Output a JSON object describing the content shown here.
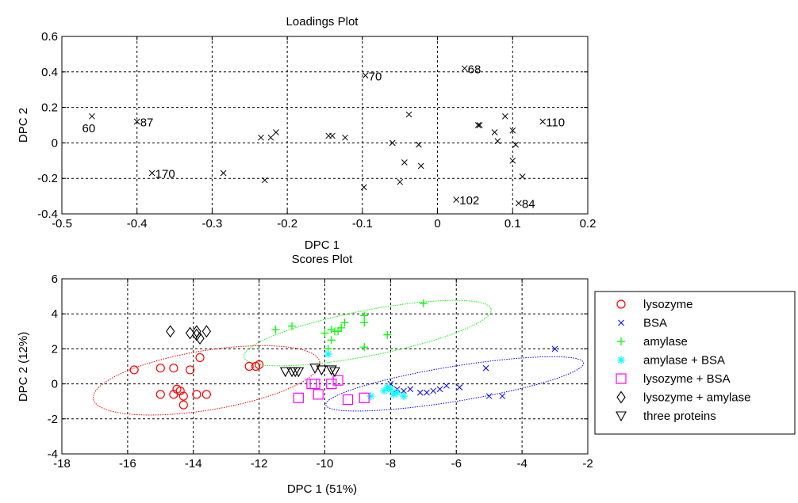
{
  "chart_data": [
    {
      "type": "scatter",
      "title": "Loadings Plot",
      "xlabel": "DPC 1",
      "ylabel": "DPC 2",
      "xlim": [
        -0.5,
        0.2
      ],
      "ylim": [
        -0.4,
        0.6
      ],
      "xticks": [
        "-0.5",
        "-0.4",
        "-0.3",
        "-0.2",
        "-0.1",
        "0",
        "0.1",
        "0.2"
      ],
      "yticks": [
        "-0.4",
        "-0.2",
        "0",
        "0.2",
        "0.4",
        "0.6"
      ],
      "grid": true,
      "marker_color": "#000000",
      "points": [
        {
          "x": -0.46,
          "y": 0.15,
          "label": "60"
        },
        {
          "x": -0.4,
          "y": 0.12,
          "label": "87"
        },
        {
          "x": -0.38,
          "y": -0.17,
          "label": "170"
        },
        {
          "x": -0.285,
          "y": -0.17
        },
        {
          "x": -0.235,
          "y": 0.03
        },
        {
          "x": -0.23,
          "y": -0.21
        },
        {
          "x": -0.222,
          "y": 0.03
        },
        {
          "x": -0.215,
          "y": 0.06
        },
        {
          "x": -0.145,
          "y": 0.04
        },
        {
          "x": -0.14,
          "y": 0.04
        },
        {
          "x": -0.123,
          "y": 0.03
        },
        {
          "x": -0.098,
          "y": -0.25
        },
        {
          "x": -0.096,
          "y": 0.38,
          "label": "70"
        },
        {
          "x": -0.06,
          "y": 0.0
        },
        {
          "x": -0.05,
          "y": -0.22
        },
        {
          "x": -0.044,
          "y": -0.11
        },
        {
          "x": -0.038,
          "y": 0.16
        },
        {
          "x": -0.025,
          "y": -0.01
        },
        {
          "x": -0.022,
          "y": -0.13
        },
        {
          "x": 0.036,
          "y": 0.42,
          "label": "68"
        },
        {
          "x": 0.025,
          "y": -0.32,
          "label": "102"
        },
        {
          "x": 0.054,
          "y": 0.1
        },
        {
          "x": 0.056,
          "y": 0.1
        },
        {
          "x": 0.076,
          "y": 0.06
        },
        {
          "x": 0.08,
          "y": 0.01
        },
        {
          "x": 0.09,
          "y": 0.15
        },
        {
          "x": 0.1,
          "y": 0.07
        },
        {
          "x": 0.1,
          "y": -0.1
        },
        {
          "x": 0.104,
          "y": -0.01
        },
        {
          "x": 0.113,
          "y": -0.19
        },
        {
          "x": 0.108,
          "y": -0.34,
          "label": "84"
        },
        {
          "x": 0.14,
          "y": 0.12,
          "label": "110"
        }
      ]
    },
    {
      "type": "scatter",
      "title": "Scores Plot",
      "xlabel": "DPC 1 (51%)",
      "ylabel": "DPC 2 (12%)",
      "xlim": [
        -18,
        -2
      ],
      "ylim": [
        -4,
        6
      ],
      "xticks": [
        "-18",
        "-16",
        "-14",
        "-12",
        "-10",
        "-8",
        "-6",
        "-4",
        "-2"
      ],
      "yticks": [
        "-4",
        "-2",
        "0",
        "2",
        "4",
        "6"
      ],
      "grid": true,
      "legend_position": "right",
      "series": [
        {
          "name": "lysozyme",
          "marker": "circle",
          "color": "#ff0000",
          "points": [
            [
              -15.8,
              0.8
            ],
            [
              -15.0,
              0.9
            ],
            [
              -14.6,
              0.9
            ],
            [
              -14.1,
              0.8
            ],
            [
              -13.8,
              1.5
            ],
            [
              -15.0,
              -0.6
            ],
            [
              -14.6,
              -0.6
            ],
            [
              -14.4,
              -0.4
            ],
            [
              -14.3,
              -0.7
            ],
            [
              -14.3,
              -1.2
            ],
            [
              -13.9,
              -0.6
            ],
            [
              -13.6,
              -0.6
            ],
            [
              -14.5,
              -0.3
            ],
            [
              -12.3,
              1.0
            ],
            [
              -12.1,
              1.0
            ],
            [
              -12.0,
              1.1
            ]
          ],
          "ellipse": {
            "cx": -13.6,
            "cy": 0.2,
            "rx": 3.6,
            "ry": 1.7,
            "angle_deg": 17
          }
        },
        {
          "name": "BSA",
          "marker": "x",
          "color": "#0000ff",
          "points": [
            [
              -7.8,
              -0.3
            ],
            [
              -7.4,
              -0.3
            ],
            [
              -7.1,
              -0.5
            ],
            [
              -6.9,
              -0.5
            ],
            [
              -6.7,
              -0.4
            ],
            [
              -6.5,
              -0.3
            ],
            [
              -6.3,
              -0.1
            ],
            [
              -5.9,
              -0.2
            ],
            [
              -5.1,
              0.9
            ],
            [
              -5.0,
              -0.7
            ],
            [
              -4.6,
              -0.7
            ],
            [
              -3.0,
              2.0
            ],
            [
              -8.0,
              0.0
            ],
            [
              -7.6,
              -0.4
            ]
          ],
          "ellipse": {
            "cx": -6.05,
            "cy": 0.0,
            "rx": 4.1,
            "ry": 1.0,
            "angle_deg": 17
          }
        },
        {
          "name": "amylase",
          "marker": "plus",
          "color": "#00ff00",
          "points": [
            [
              -11.5,
              3.1
            ],
            [
              -11.0,
              3.3
            ],
            [
              -10.0,
              2.9
            ],
            [
              -9.8,
              3.1
            ],
            [
              -9.7,
              3.0
            ],
            [
              -9.5,
              3.2
            ],
            [
              -9.4,
              3.5
            ],
            [
              -8.8,
              3.9
            ],
            [
              -8.8,
              3.5
            ],
            [
              -8.8,
              2.1
            ],
            [
              -8.1,
              2.8
            ],
            [
              -9.9,
              2.0
            ],
            [
              -9.8,
              2.5
            ],
            [
              -7.0,
              4.6
            ],
            [
              -9.6,
              3.0
            ]
          ],
          "ellipse": {
            "cx": -8.7,
            "cy": 2.9,
            "rx": 4.0,
            "ry": 1.3,
            "angle_deg": 20
          }
        },
        {
          "name": "amylase + BSA",
          "marker": "star",
          "color": "#00ffff",
          "points": [
            [
              -8.6,
              -0.7
            ],
            [
              -8.2,
              -0.4
            ],
            [
              -8.0,
              -0.3
            ],
            [
              -7.9,
              -0.6
            ],
            [
              -7.8,
              -0.5
            ],
            [
              -7.6,
              -0.7
            ],
            [
              -8.1,
              -0.2
            ],
            [
              -9.9,
              1.7
            ]
          ]
        },
        {
          "name": "lysozyme + BSA",
          "marker": "square",
          "color": "#ff00ff",
          "points": [
            [
              -10.8,
              -0.8
            ],
            [
              -10.4,
              0.0
            ],
            [
              -10.2,
              -0.6
            ],
            [
              -9.8,
              0.0
            ],
            [
              -9.6,
              0.2
            ],
            [
              -9.3,
              -0.9
            ],
            [
              -8.8,
              -0.8
            ],
            [
              -10.3,
              0.0
            ]
          ]
        },
        {
          "name": "lysozyme + amylase",
          "marker": "diamond",
          "color": "#000000",
          "points": [
            [
              -14.7,
              3.0
            ],
            [
              -14.1,
              2.9
            ],
            [
              -13.9,
              3.0
            ],
            [
              -13.9,
              2.8
            ],
            [
              -13.6,
              3.0
            ],
            [
              -13.8,
              2.6
            ]
          ]
        },
        {
          "name": "three proteins",
          "marker": "triangle-down",
          "color": "#000000",
          "points": [
            [
              -11.2,
              0.7
            ],
            [
              -11.0,
              0.7
            ],
            [
              -10.9,
              0.7
            ],
            [
              -10.8,
              0.7
            ],
            [
              -10.3,
              0.9
            ],
            [
              -10.1,
              0.8
            ],
            [
              -9.8,
              0.8
            ],
            [
              -9.7,
              0.7
            ]
          ]
        }
      ]
    }
  ]
}
